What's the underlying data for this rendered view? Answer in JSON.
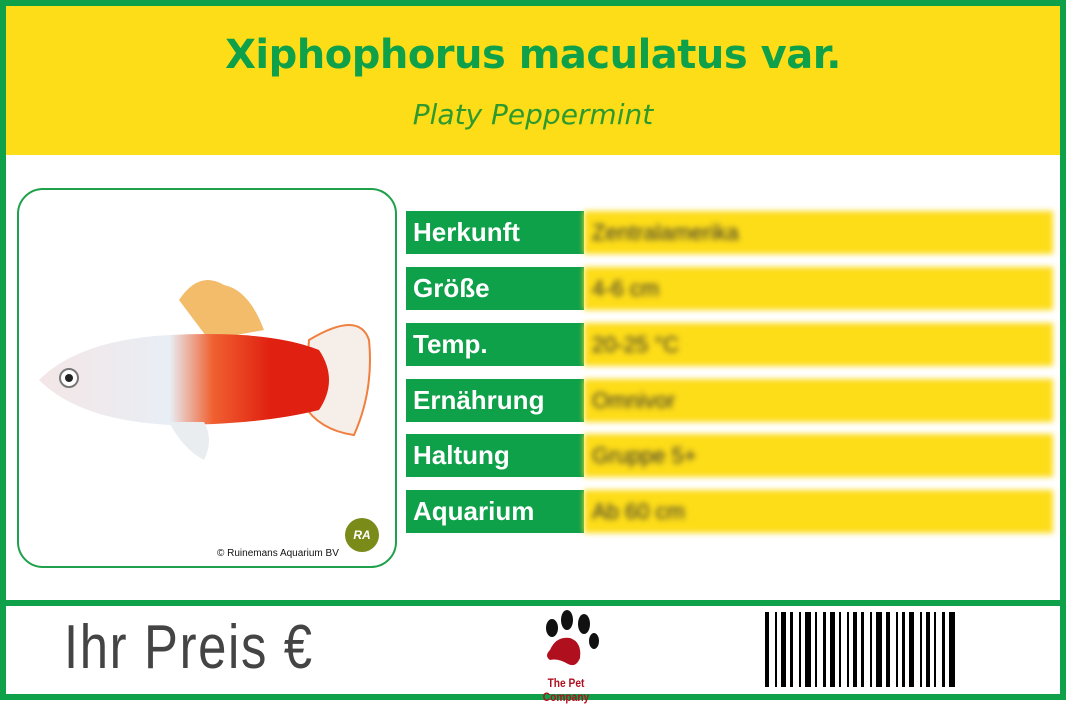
{
  "header": {
    "title": "Xiphophorus maculatus var.",
    "subtitle": "Platy Peppermint"
  },
  "photo": {
    "credit": "© Ruinemans Aquarium BV",
    "logo_text": "RA"
  },
  "facts": [
    {
      "label": "Herkunft",
      "value": "Zentralamerika"
    },
    {
      "label": "Größe",
      "value": "4-6 cm"
    },
    {
      "label": "Temp.",
      "value": "20-25 °C"
    },
    {
      "label": "Ernährung",
      "value": "Omnivor"
    },
    {
      "label": "Haltung",
      "value": "Gruppe 5+"
    },
    {
      "label": "Aquarium",
      "value": "Ab 60 cm"
    }
  ],
  "footer": {
    "price_label": "Ihr Preis €",
    "brand": "The Pet Company"
  },
  "colors": {
    "green": "#0FA04A",
    "yellow": "#FDDC18"
  }
}
